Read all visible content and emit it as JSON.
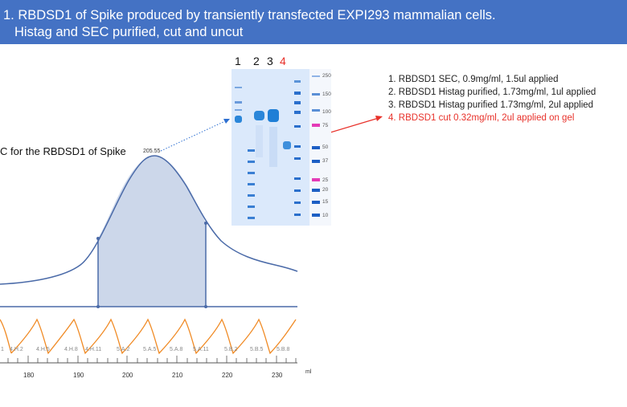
{
  "banner": {
    "line1": "1. RBDSD1  of Spike produced  by  transiently transfected EXPI293 mammalian cells.",
    "line2": "Histag and SEC purified, cut and uncut"
  },
  "chart": {
    "title": "C for the RBDSD1 of Spike",
    "peak_label": "205.55",
    "x_unit": "ml",
    "x_ticks": [
      "180",
      "190",
      "200",
      "210",
      "220",
      "230"
    ],
    "fractions": [
      "1",
      "4.H.2",
      "4.H.5",
      "4.H.8",
      "4.H.11",
      "5.A.2",
      "5.A.5",
      "5.A.8",
      "5.A.11",
      "5.B.2",
      "5.B.5",
      "5.B.8"
    ]
  },
  "gel": {
    "lane_numbers": [
      "1",
      "2",
      "3",
      "4"
    ],
    "markers": [
      "250",
      "150",
      "100",
      "75",
      "50",
      "37",
      "25",
      "20",
      "15",
      "10"
    ]
  },
  "notes": [
    "1.  RBDSD1  SEC, 0.9mg/ml, 1.5ul applied",
    "2.  RBDSD1  Histag purified, 1.73mg/ml, 1ul applied",
    "3.  RBDSD1  Histag purified 1.73mg/ml, 2ul applied",
    "4.  RBDSD1   cut  0.32mg/ml, 2ul applied on gel"
  ],
  "colors": {
    "banner": "#4472c4",
    "curve": "#4a6aa8",
    "fill": "#ccd7ea",
    "conductivity": "#f08a24",
    "highlight": "#e8312a",
    "gel_bg": "#dbe9fb",
    "band": "#2a86d9"
  }
}
